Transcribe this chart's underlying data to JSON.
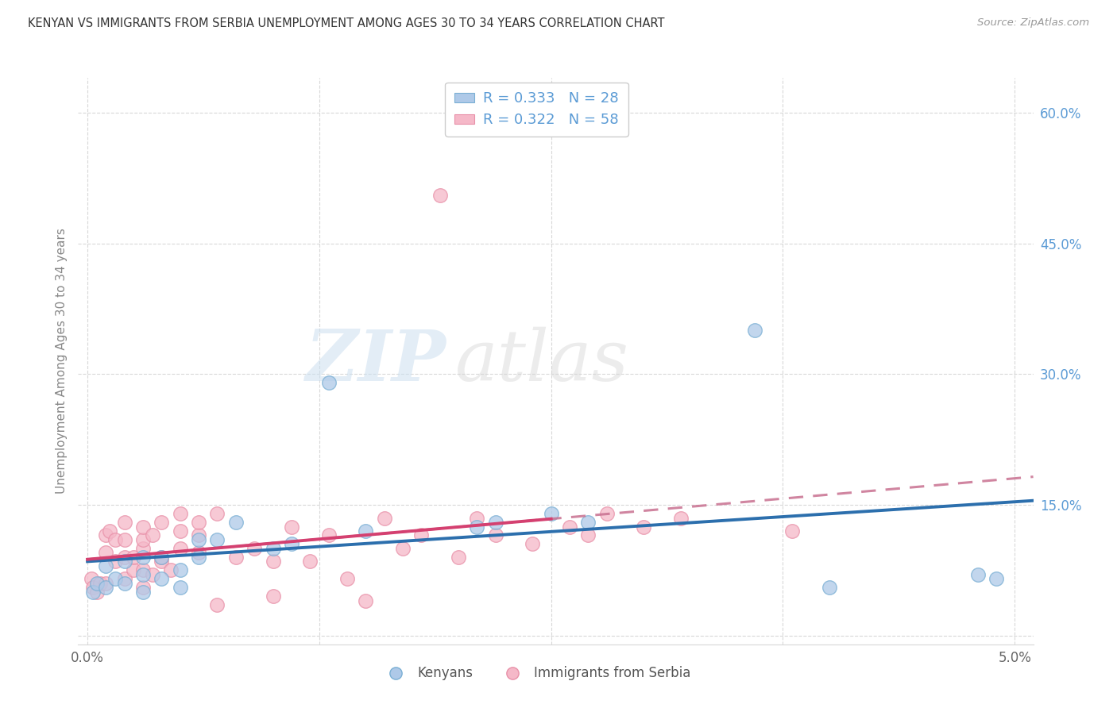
{
  "title": "KENYAN VS IMMIGRANTS FROM SERBIA UNEMPLOYMENT AMONG AGES 30 TO 34 YEARS CORRELATION CHART",
  "source": "Source: ZipAtlas.com",
  "ylabel": "Unemployment Among Ages 30 to 34 years",
  "xlim": [
    -0.0005,
    0.051
  ],
  "ylim": [
    -0.01,
    0.64
  ],
  "color_blue": "#aec9e8",
  "color_blue_edge": "#7aafd4",
  "color_pink": "#f5b8c8",
  "color_pink_edge": "#e890a8",
  "color_blue_line": "#2c6fad",
  "color_pink_line": "#d44070",
  "color_pink_line_dashed": "#c87090",
  "color_right_tick": "#5b9bd5",
  "color_grid": "#d8d8d8",
  "color_title": "#333333",
  "color_source": "#999999",
  "right_yticks": [
    0.0,
    0.15,
    0.3,
    0.45,
    0.6
  ],
  "right_yticklabels": [
    "",
    "15.0%",
    "30.0%",
    "45.0%",
    "60.0%"
  ],
  "xtick_positions": [
    0.0,
    0.0125,
    0.025,
    0.0375,
    0.05
  ],
  "xtick_labels": [
    "0.0%",
    "",
    "",
    "",
    "5.0%"
  ],
  "kenyans_x": [
    0.0003,
    0.0005,
    0.001,
    0.001,
    0.0015,
    0.002,
    0.002,
    0.003,
    0.003,
    0.003,
    0.004,
    0.004,
    0.005,
    0.005,
    0.006,
    0.006,
    0.007,
    0.008,
    0.01,
    0.011,
    0.013,
    0.015,
    0.021,
    0.022,
    0.025,
    0.027,
    0.036,
    0.04,
    0.048,
    0.049
  ],
  "kenyans_y": [
    0.05,
    0.06,
    0.055,
    0.08,
    0.065,
    0.06,
    0.085,
    0.05,
    0.07,
    0.09,
    0.065,
    0.09,
    0.055,
    0.075,
    0.09,
    0.11,
    0.11,
    0.13,
    0.1,
    0.105,
    0.29,
    0.12,
    0.125,
    0.13,
    0.14,
    0.13,
    0.35,
    0.055,
    0.07,
    0.065
  ],
  "serbia_x": [
    0.0002,
    0.0003,
    0.0005,
    0.0007,
    0.001,
    0.001,
    0.001,
    0.0012,
    0.0015,
    0.0015,
    0.002,
    0.002,
    0.002,
    0.002,
    0.0025,
    0.0025,
    0.003,
    0.003,
    0.003,
    0.003,
    0.003,
    0.0035,
    0.0035,
    0.004,
    0.004,
    0.004,
    0.0045,
    0.005,
    0.005,
    0.005,
    0.006,
    0.006,
    0.006,
    0.007,
    0.007,
    0.008,
    0.009,
    0.01,
    0.01,
    0.011,
    0.012,
    0.013,
    0.014,
    0.015,
    0.016,
    0.017,
    0.018,
    0.019,
    0.02,
    0.021,
    0.022,
    0.024,
    0.026,
    0.027,
    0.028,
    0.03,
    0.032,
    0.038
  ],
  "serbia_y": [
    0.065,
    0.055,
    0.05,
    0.06,
    0.06,
    0.095,
    0.115,
    0.12,
    0.085,
    0.11,
    0.065,
    0.09,
    0.11,
    0.13,
    0.075,
    0.09,
    0.055,
    0.075,
    0.1,
    0.11,
    0.125,
    0.07,
    0.115,
    0.085,
    0.09,
    0.13,
    0.075,
    0.1,
    0.12,
    0.14,
    0.095,
    0.115,
    0.13,
    0.035,
    0.14,
    0.09,
    0.1,
    0.045,
    0.085,
    0.125,
    0.085,
    0.115,
    0.065,
    0.04,
    0.135,
    0.1,
    0.115,
    0.505,
    0.09,
    0.135,
    0.115,
    0.105,
    0.125,
    0.115,
    0.14,
    0.125,
    0.135,
    0.12
  ]
}
